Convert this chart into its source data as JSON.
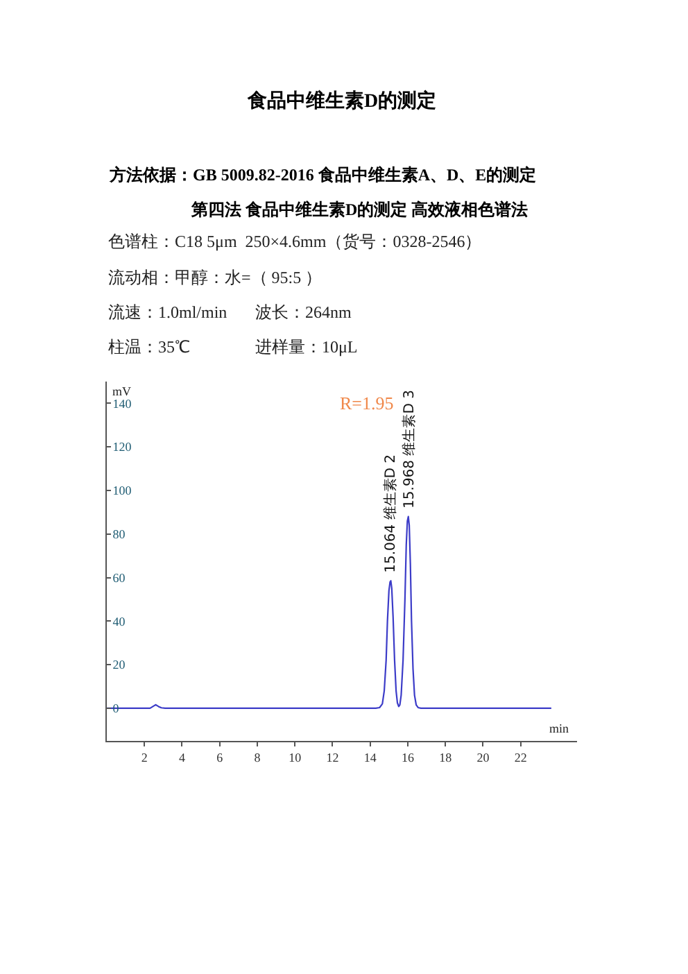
{
  "chart_data": {
    "type": "line",
    "title": "食品中维生素D的测定",
    "subtitle": "方法依据：GB 5009.82-2016 食品中维生素A、D、E的测定",
    "xlabel": "min",
    "ylabel": "mV",
    "x": [
      0,
      2.3,
      2.45,
      2.6,
      2.75,
      2.9,
      3.1,
      14.3,
      14.5,
      14.65,
      14.75,
      14.85,
      14.92,
      15.0,
      15.06,
      15.1,
      15.15,
      15.22,
      15.3,
      15.38,
      15.45,
      15.52,
      15.58,
      15.65,
      15.75,
      15.85,
      15.92,
      15.98,
      16.03,
      16.08,
      16.14,
      16.2,
      16.28,
      16.36,
      16.45,
      16.55,
      16.7,
      17,
      20,
      23.6
    ],
    "series": [
      {
        "color": "#3c3cc8",
        "values": [
          0,
          0,
          0.8,
          1.6,
          0.8,
          0.2,
          0,
          0,
          0.3,
          2,
          8,
          22,
          40,
          54,
          58,
          58.5,
          55,
          42,
          22,
          8,
          2.5,
          0.8,
          1.5,
          6,
          22,
          50,
          75,
          86,
          88,
          84,
          66,
          40,
          18,
          6,
          1.5,
          0.3,
          0,
          0,
          0,
          0
        ]
      }
    ],
    "xlim": [
      0,
      25
    ],
    "ylim": [
      -15,
      150
    ],
    "xticks": [
      2,
      4,
      6,
      8,
      10,
      12,
      14,
      16,
      18,
      20,
      22
    ],
    "yticks": [
      0,
      20,
      40,
      60,
      80,
      100,
      120,
      140
    ],
    "grid": false,
    "annotations": [
      "第四法 食品中维生素D的测定 高效液相色谱法",
      "色谱柱：C18 5μm  250×4.6mm（货号：0328-2546）",
      "流动相：甲醇：水=（ 95:5 ）",
      "流速：1.0ml/min",
      "波长：264nm",
      "柱温：35℃",
      "进样量：10μL",
      "R=1.95",
      {
        "text": "15.064 维生素D 2",
        "x": 15.1,
        "y": 58.5
      },
      {
        "text": "15.968 维生素D 3",
        "x": 16.05,
        "y": 88
      }
    ]
  }
}
